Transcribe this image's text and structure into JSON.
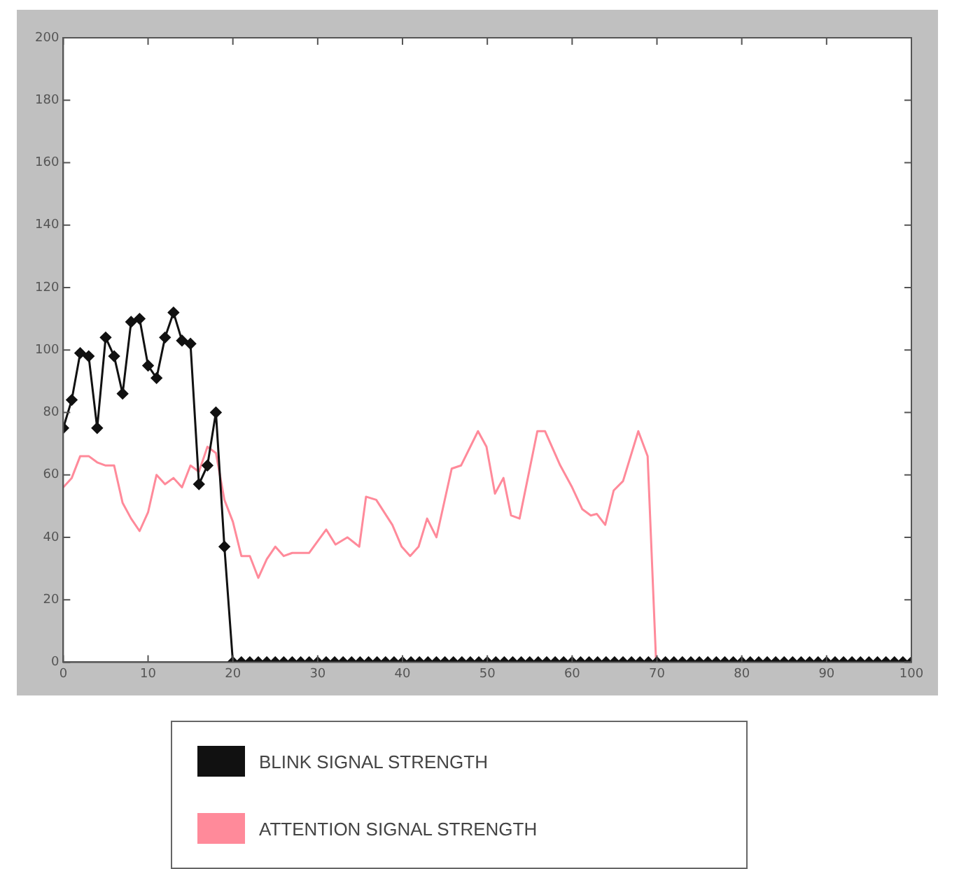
{
  "chart_data": {
    "type": "line",
    "xlim": [
      0,
      100
    ],
    "xticks": [
      0,
      10,
      20,
      30,
      40,
      50,
      60,
      70,
      80,
      90,
      100
    ],
    "ylim": [
      0,
      200
    ],
    "yticks": [
      0,
      20,
      40,
      60,
      80,
      100,
      120,
      140,
      160,
      180,
      200
    ],
    "grid": false,
    "legend": "bottom",
    "series": [
      {
        "name": "BLINK SIGNAL STRENGTH",
        "color": "#111111",
        "marker": "diamond",
        "x": [
          0,
          1,
          2,
          3,
          4,
          5,
          6,
          7,
          8,
          9,
          10,
          11,
          12,
          13,
          14,
          15,
          16,
          17,
          18,
          19,
          20,
          21,
          22,
          23,
          24,
          25,
          26,
          27,
          28,
          29,
          30,
          31,
          32,
          33,
          34,
          35,
          36,
          37,
          38,
          39,
          40,
          41,
          42,
          43,
          44,
          45,
          46,
          47,
          48,
          49,
          50,
          51,
          52,
          53,
          54,
          55,
          56,
          57,
          58,
          59,
          60,
          61,
          62,
          63,
          64,
          65,
          66,
          67,
          68,
          69,
          70,
          71,
          72,
          73,
          74,
          75,
          76,
          77,
          78,
          79,
          80,
          81,
          82,
          83,
          84,
          85,
          86,
          87,
          88,
          89,
          90,
          91,
          92,
          93,
          94,
          95,
          96,
          97,
          98,
          99,
          100
        ],
        "values": [
          75,
          84,
          99,
          98,
          75,
          104,
          98,
          86,
          109,
          110,
          95,
          91,
          104,
          112,
          103,
          102,
          57,
          63,
          80,
          37,
          0,
          0,
          0,
          0,
          0,
          0,
          0,
          0,
          0,
          0,
          0,
          0,
          0,
          0,
          0,
          0,
          0,
          0,
          0,
          0,
          0,
          0,
          0,
          0,
          0,
          0,
          0,
          0,
          0,
          0,
          0,
          0,
          0,
          0,
          0,
          0,
          0,
          0,
          0,
          0,
          0,
          0,
          0,
          0,
          0,
          0,
          0,
          0,
          0,
          0,
          0,
          0,
          0,
          0,
          0,
          0,
          0,
          0,
          0,
          0,
          0,
          0,
          0,
          0,
          0,
          0,
          0,
          0,
          0,
          0,
          0,
          0,
          0,
          0,
          0,
          0,
          0,
          0,
          0,
          0,
          0
        ]
      },
      {
        "name": "ATTENTION SIGNAL STRENGTH",
        "color": "#ff8a9a",
        "marker": "none",
        "x": [
          0,
          1,
          2,
          3,
          4,
          5,
          6,
          7,
          8,
          9,
          10,
          11,
          12,
          13,
          14,
          15,
          16,
          17,
          18,
          19,
          20,
          21,
          22,
          23,
          24,
          25,
          26,
          27,
          29,
          31,
          32.1,
          33.5,
          34.9,
          35.7,
          36.9,
          38.8,
          39.9,
          40.9,
          41.9,
          42.9,
          44,
          45.8,
          46.9,
          48.9,
          49.9,
          50.9,
          51.9,
          52.8,
          53.8,
          55.9,
          56.8,
          58.6,
          60,
          61.2,
          62.2,
          62.9,
          63.9,
          64.9,
          66,
          67.8,
          68.9,
          69.9
        ],
        "values": [
          56,
          59,
          66,
          66,
          64,
          63,
          63,
          51,
          46,
          42,
          48,
          60,
          57,
          59,
          56,
          63,
          61,
          69,
          67,
          52,
          45,
          34,
          34,
          27,
          33,
          37,
          34,
          35,
          35,
          42.5,
          37.7,
          40,
          37,
          53,
          52,
          44,
          37,
          34,
          37,
          46,
          40,
          62,
          63,
          74,
          69,
          54,
          59,
          47,
          46,
          74,
          74,
          63,
          56,
          49,
          47,
          47.5,
          44,
          55,
          58,
          74,
          66,
          0
        ]
      }
    ]
  }
}
